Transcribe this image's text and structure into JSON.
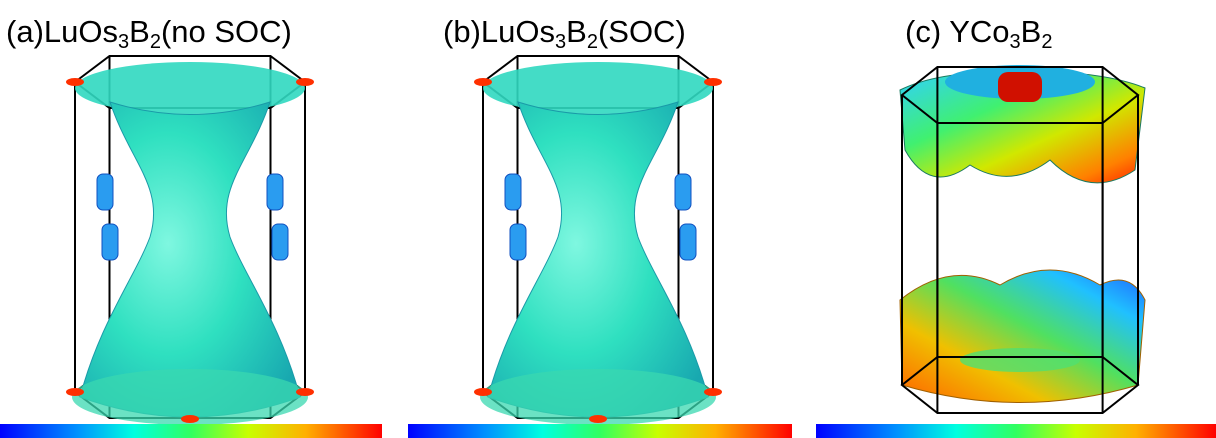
{
  "panels": [
    {
      "label": [
        "(a)",
        "LuOs",
        "3",
        "B",
        "2",
        "(no SOC)"
      ]
    },
    {
      "label": [
        "(b)",
        "LuOs",
        "3",
        "B",
        "2",
        "(SOC)"
      ]
    },
    {
      "label": [
        "(c) ",
        "YCo",
        "3",
        "B",
        "2",
        ""
      ]
    }
  ]
}
